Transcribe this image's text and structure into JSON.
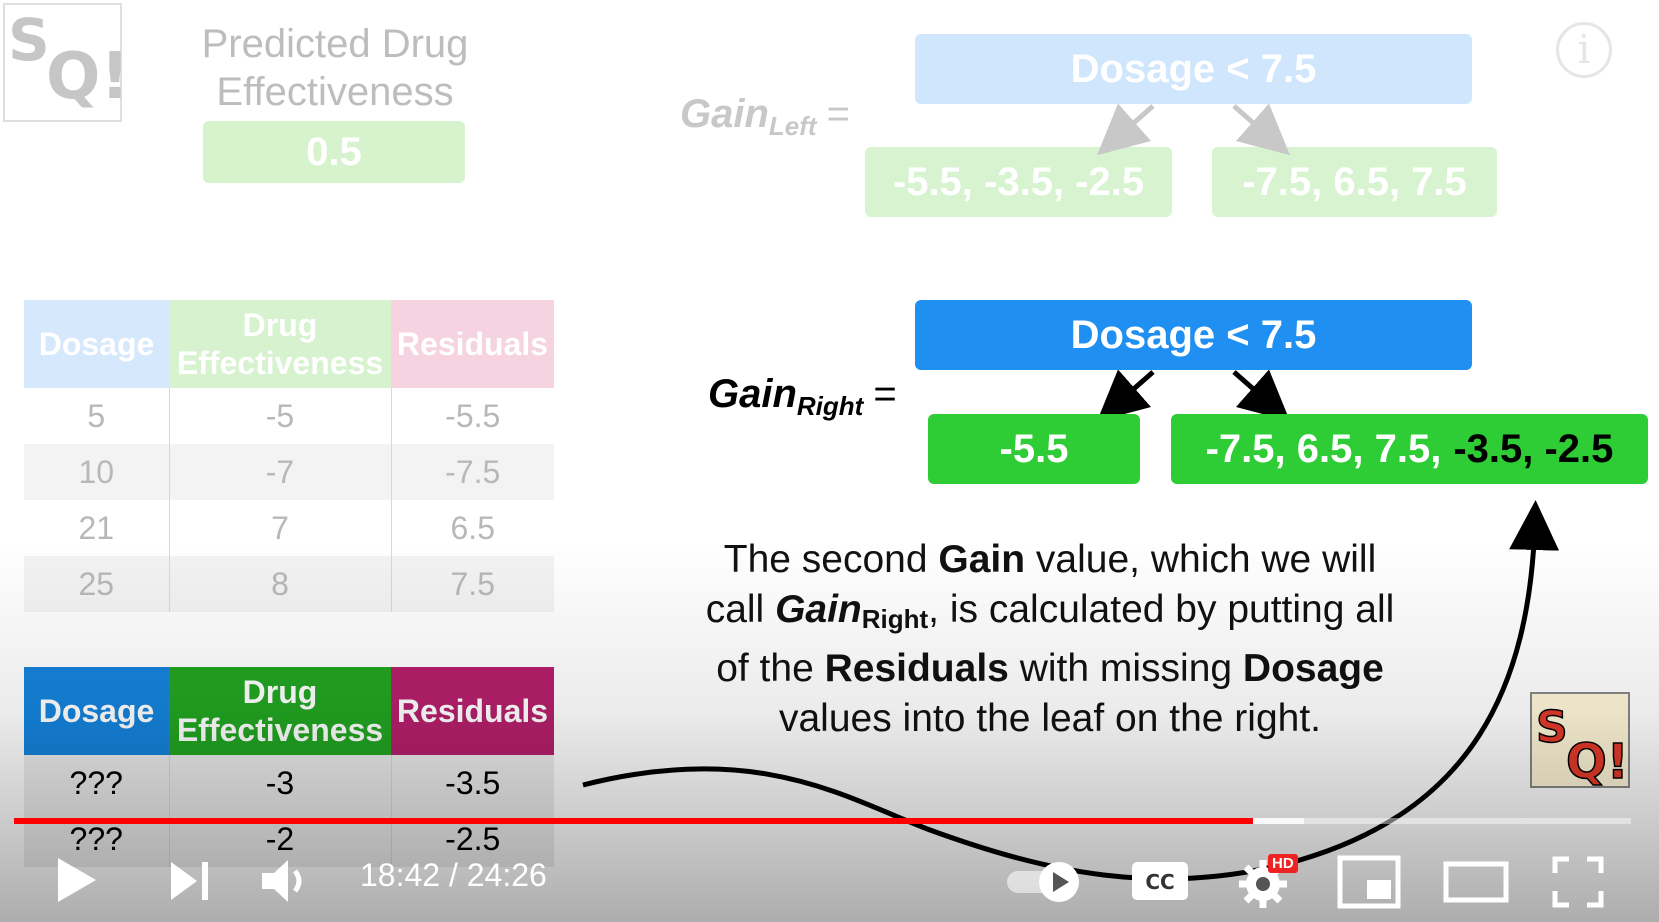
{
  "header": {
    "pred_title_line1": "Predicted Drug",
    "pred_title_line2": "Effectiveness",
    "pred_value": "0.5"
  },
  "gain_left": {
    "label": "Gain",
    "sub": "Left",
    "eq": "=",
    "root": "Dosage < 7.5",
    "left_leaf": "-5.5, -3.5, -2.5",
    "right_leaf": "-7.5, 6.5, 7.5"
  },
  "gain_right": {
    "label": "Gain",
    "sub": "Right",
    "eq": "=",
    "root": "Dosage < 7.5",
    "left_leaf": "-5.5",
    "right_leaf_a": "-7.5, 6.5, 7.5,",
    "right_leaf_b": "-3.5, -2.5"
  },
  "table_known": {
    "headers": [
      "Dosage",
      "Drug Effectiveness",
      "Residuals"
    ],
    "rows": [
      [
        "5",
        "-5",
        "-5.5"
      ],
      [
        "10",
        "-7",
        "-7.5"
      ],
      [
        "21",
        "7",
        "6.5"
      ],
      [
        "25",
        "8",
        "7.5"
      ]
    ]
  },
  "table_missing": {
    "headers": [
      "Dosage",
      "Drug Effectiveness",
      "Residuals"
    ],
    "rows": [
      [
        "???",
        "-3",
        "-3.5"
      ],
      [
        "???",
        "-2",
        "-2.5"
      ]
    ]
  },
  "caption": {
    "p1": "The second ",
    "b1": "Gain",
    "p2": " value, which we will call ",
    "gain": "Gain",
    "gain_sub": "Right",
    "p3": ", is calculated by putting all of the ",
    "b2": "Residuals",
    "p4": " with missing ",
    "b3": "Dosage",
    "p5": " values into the leaf on the right."
  },
  "player": {
    "current_time": "18:42",
    "separator": " / ",
    "duration": "24:26",
    "progress": 0.766,
    "buffered": 0.798,
    "hd_badge": "HD",
    "cc_label": "CC",
    "icons": [
      "play-icon",
      "next-icon",
      "volume-icon",
      "autoplay-toggle",
      "cc-icon",
      "settings-icon",
      "miniplayer-icon",
      "theater-icon",
      "fullscreen-icon"
    ],
    "accent": "#ff0000"
  },
  "info_icon_glyph": "i"
}
